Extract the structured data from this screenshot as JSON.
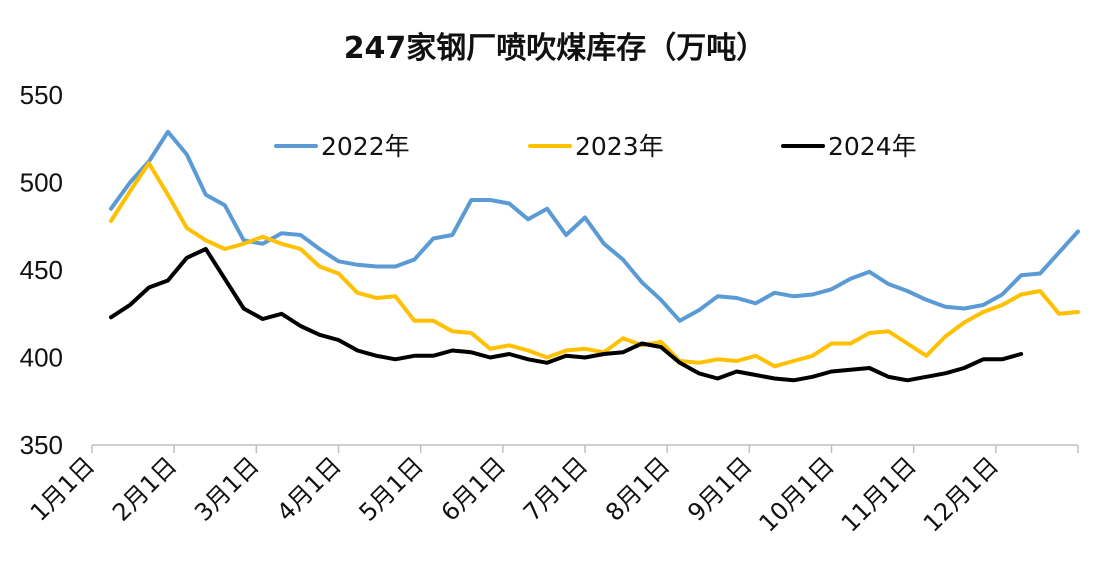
{
  "chart_data": {
    "type": "line",
    "title": "247家钢厂喷吹煤库存（万吨）",
    "ylim": [
      350,
      550
    ],
    "yticks": [
      350,
      400,
      450,
      500,
      550
    ],
    "ytick_labels": [
      "350",
      "400",
      "450",
      "500",
      "550"
    ],
    "x_tick_labels": [
      "1月1日",
      "2月1日",
      "3月1日",
      "4月1日",
      "5月1日",
      "6月1日",
      "7月1日",
      "8月1日",
      "9月1日",
      "10月1日",
      "11月1日",
      "12月1日"
    ],
    "grid": false,
    "legend_position": "top",
    "series": [
      {
        "name": "2022年",
        "color": "#5B9BD5",
        "values": [
          485,
          500,
          512,
          529,
          516,
          493,
          487,
          467,
          465,
          471,
          470,
          462,
          455,
          453,
          452,
          452,
          456,
          468,
          470,
          490,
          490,
          488,
          479,
          485,
          470,
          480,
          465,
          456,
          443,
          433,
          421,
          427,
          435,
          434,
          431,
          437,
          435,
          436,
          439,
          445,
          449,
          442,
          438,
          433,
          429,
          428,
          430,
          436,
          447,
          448,
          460,
          472
        ]
      },
      {
        "name": "2023年",
        "color": "#FFC000",
        "values": [
          478,
          495,
          511,
          493,
          474,
          467,
          462,
          465,
          469,
          465,
          462,
          452,
          448,
          437,
          434,
          435,
          421,
          421,
          415,
          414,
          405,
          407,
          404,
          400,
          404,
          405,
          403,
          411,
          407,
          409,
          398,
          397,
          399,
          398,
          401,
          395,
          398,
          401,
          408,
          408,
          414,
          415,
          408,
          401,
          412,
          420,
          426,
          430,
          436,
          438,
          425,
          426
        ]
      },
      {
        "name": "2024年",
        "color": "#000000",
        "values": [
          423,
          430,
          440,
          444,
          457,
          462,
          445,
          428,
          422,
          425,
          418,
          413,
          410,
          404,
          401,
          399,
          401,
          401,
          404,
          403,
          400,
          402,
          399,
          397,
          401,
          400,
          402,
          403,
          408,
          406,
          397,
          391,
          388,
          392,
          390,
          388,
          387,
          389,
          392,
          393,
          394,
          389,
          387,
          389,
          391,
          394,
          399,
          399,
          402
        ]
      }
    ]
  }
}
